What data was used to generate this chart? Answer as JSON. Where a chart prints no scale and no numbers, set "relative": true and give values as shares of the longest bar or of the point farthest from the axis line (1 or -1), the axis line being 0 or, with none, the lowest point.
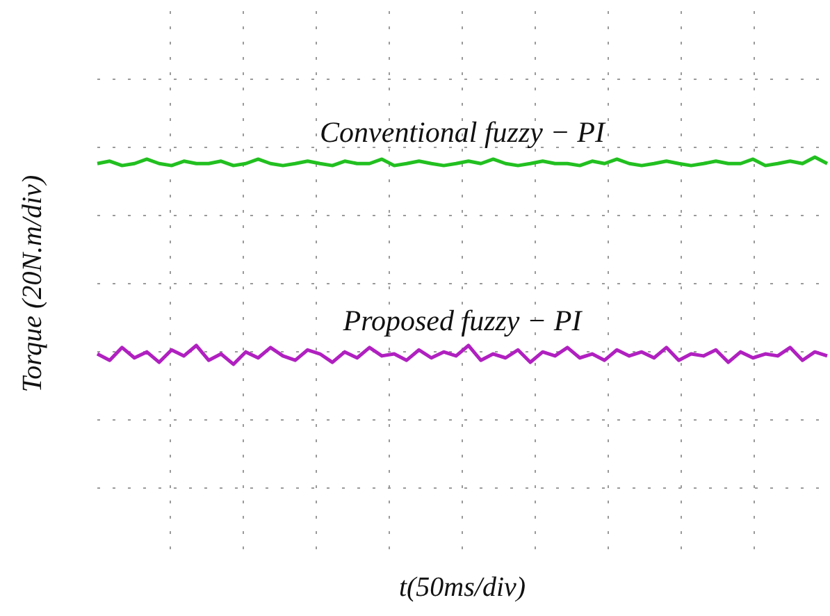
{
  "chart_data": {
    "type": "line",
    "relative": true,
    "xlabel": "t(50ms/div)",
    "ylabel": "Torque (20N.m/div)",
    "grid": true,
    "legend": false,
    "marker": "none",
    "line_style": "solid",
    "categories": [
      null,
      null,
      null,
      null,
      null,
      null,
      null,
      null,
      null,
      null,
      null,
      null,
      null,
      null,
      null,
      null,
      null,
      null,
      null,
      null,
      null,
      null,
      null,
      null,
      null,
      null,
      null,
      null,
      null,
      null,
      null,
      null,
      null,
      null,
      null,
      null,
      null,
      null,
      null,
      null,
      null,
      null,
      null,
      null,
      null,
      null,
      null,
      null,
      null,
      null,
      null,
      null,
      null,
      null,
      null,
      null,
      null,
      null,
      null,
      null
    ],
    "series": [
      {
        "name": "Conventional fuzzy − PI",
        "color": "#22c020",
        "values": [
          0.984,
          0.99,
          0.979,
          0.984,
          0.995,
          0.984,
          0.979,
          0.99,
          0.984,
          0.984,
          0.99,
          0.979,
          0.984,
          0.995,
          0.984,
          0.979,
          0.984,
          0.99,
          0.984,
          0.979,
          0.99,
          0.984,
          0.984,
          0.995,
          0.979,
          0.984,
          0.99,
          0.984,
          0.979,
          0.984,
          0.99,
          0.984,
          0.995,
          0.984,
          0.979,
          0.984,
          0.99,
          0.984,
          0.984,
          0.979,
          0.99,
          0.984,
          0.995,
          0.984,
          0.979,
          0.984,
          0.99,
          0.984,
          0.979,
          0.984,
          0.99,
          0.984,
          0.984,
          0.995,
          0.979,
          0.984,
          0.99,
          0.984,
          1.0,
          0.984
        ]
      },
      {
        "name": "Proposed fuzzy − PI",
        "color": "#b020c0",
        "values": [
          0.507,
          0.491,
          0.523,
          0.497,
          0.512,
          0.486,
          0.517,
          0.502,
          0.528,
          0.491,
          0.507,
          0.481,
          0.512,
          0.497,
          0.523,
          0.502,
          0.491,
          0.517,
          0.507,
          0.486,
          0.512,
          0.497,
          0.523,
          0.502,
          0.507,
          0.491,
          0.517,
          0.497,
          0.512,
          0.502,
          0.528,
          0.491,
          0.507,
          0.497,
          0.517,
          0.486,
          0.512,
          0.502,
          0.523,
          0.497,
          0.507,
          0.491,
          0.517,
          0.502,
          0.512,
          0.497,
          0.523,
          0.491,
          0.507,
          0.502,
          0.517,
          0.486,
          0.512,
          0.497,
          0.507,
          0.502,
          0.523,
          0.491,
          0.512,
          0.502
        ]
      }
    ]
  }
}
